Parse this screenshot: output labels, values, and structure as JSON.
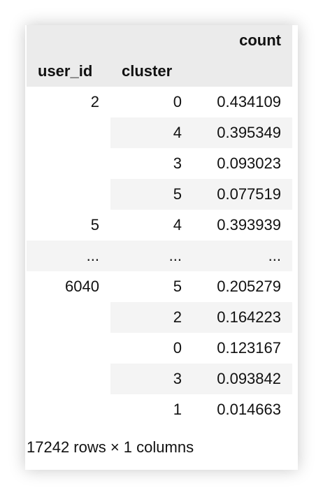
{
  "table": {
    "value_header": "count",
    "index_headers": [
      "user_id",
      "cluster"
    ],
    "rows": [
      {
        "user_id": "2",
        "cluster": "0",
        "count": "0.434109"
      },
      {
        "user_id": "",
        "cluster": "4",
        "count": "0.395349"
      },
      {
        "user_id": "",
        "cluster": "3",
        "count": "0.093023"
      },
      {
        "user_id": "",
        "cluster": "5",
        "count": "0.077519"
      },
      {
        "user_id": "5",
        "cluster": "4",
        "count": "0.393939"
      },
      {
        "user_id": "...",
        "cluster": "...",
        "count": "..."
      },
      {
        "user_id": "6040",
        "cluster": "5",
        "count": "0.205279"
      },
      {
        "user_id": "",
        "cluster": "2",
        "count": "0.164223"
      },
      {
        "user_id": "",
        "cluster": "0",
        "count": "0.123167"
      },
      {
        "user_id": "",
        "cluster": "3",
        "count": "0.093842"
      },
      {
        "user_id": "",
        "cluster": "1",
        "count": "0.014663"
      }
    ],
    "footer": "17242 rows × 1 columns"
  }
}
